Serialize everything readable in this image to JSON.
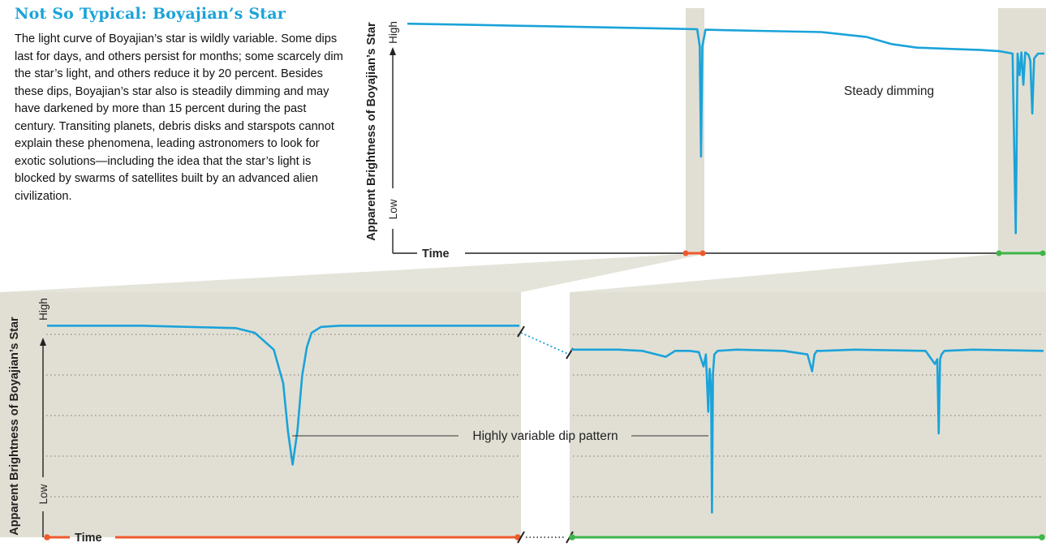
{
  "title": "Not So Typical: Boyajian’s Star",
  "body": "The light curve of Boyajian’s star is wildly variable. Some dips last for days, and others persist for months; some scarcely dim the star’s light, and others reduce it by 20 percent. Besides these dips, Boyajian’s star also is steadily dimming and may have darkened by more than 15 percent during the past century. Transiting planets, debris disks and starspots cannot explain these phenomena, leading astronomers to look for exotic solutions—including the idea that the star’s light is blocked by swarms of satellites built by an advanced alien civilization.",
  "colors": {
    "curve": "#1aa3d9",
    "title": "#1aa3d9",
    "band": "#e1dfd4",
    "orange": "#ee5a2c",
    "green": "#3db54a",
    "axis": "#222222"
  },
  "chart_data": [
    {
      "type": "line",
      "title": "",
      "xlabel": "Time",
      "ylabel": "Apparent Brightness of Boyajian’s Star",
      "ytick_high": "High",
      "ytick_low": "Low",
      "ylim": [
        0,
        1
      ],
      "xlim": [
        0,
        1
      ],
      "annotation": "Steady dimming",
      "highlight_ranges": [
        [
          0.459,
          0.474
        ],
        [
          0.925,
          1.0
        ]
      ],
      "series": [
        {
          "x": [
            0.0,
            0.1,
            0.2,
            0.3,
            0.4,
            0.455,
            0.459,
            0.461,
            0.463,
            0.468,
            0.55,
            0.65,
            0.72,
            0.76,
            0.8,
            0.85,
            0.9,
            0.93,
            0.95,
            0.955,
            0.958,
            0.961,
            0.964,
            0.967,
            0.97,
            0.975,
            0.978,
            0.981,
            0.984,
            0.987,
            0.99,
            1.0
          ],
          "y": [
            0.935,
            0.93,
            0.925,
            0.92,
            0.915,
            0.912,
            0.84,
            0.38,
            0.84,
            0.91,
            0.905,
            0.9,
            0.88,
            0.85,
            0.835,
            0.83,
            0.825,
            0.82,
            0.81,
            0.06,
            0.81,
            0.72,
            0.815,
            0.68,
            0.815,
            0.805,
            0.78,
            0.56,
            0.79,
            0.8,
            0.81,
            0.81
          ]
        }
      ]
    },
    {
      "type": "line",
      "title": "",
      "xlabel": "Time",
      "ylabel": "Apparent Brightness of Boyajian’s Star",
      "ytick_high": "High",
      "ytick_low": "Low",
      "ylim": [
        0,
        1
      ],
      "xlim": [
        0,
        1
      ],
      "annotation": "Highly variable dip pattern",
      "series": [
        {
          "x": [
            0.0,
            0.1,
            0.2,
            0.3,
            0.4,
            0.44,
            0.48,
            0.5,
            0.51,
            0.52,
            0.53,
            0.54,
            0.55,
            0.56,
            0.58,
            0.62,
            0.7,
            0.8,
            0.9,
            1.0
          ],
          "y": [
            0.86,
            0.86,
            0.86,
            0.855,
            0.85,
            0.83,
            0.76,
            0.62,
            0.42,
            0.28,
            0.42,
            0.65,
            0.77,
            0.83,
            0.855,
            0.86,
            0.86,
            0.86,
            0.86,
            0.86
          ]
        }
      ]
    },
    {
      "type": "line",
      "title": "",
      "xlabel": "",
      "ylabel": "",
      "ylim": [
        0,
        1
      ],
      "xlim": [
        0,
        1
      ],
      "series": [
        {
          "x": [
            0.0,
            0.1,
            0.15,
            0.2,
            0.22,
            0.25,
            0.27,
            0.28,
            0.285,
            0.29,
            0.293,
            0.296,
            0.298,
            0.3,
            0.303,
            0.31,
            0.35,
            0.45,
            0.5,
            0.51,
            0.515,
            0.52,
            0.53,
            0.6,
            0.75,
            0.77,
            0.775,
            0.778,
            0.781,
            0.784,
            0.79,
            0.85,
            1.0
          ],
          "y": [
            0.76,
            0.76,
            0.755,
            0.73,
            0.755,
            0.755,
            0.75,
            0.69,
            0.74,
            0.5,
            0.68,
            0.6,
            0.08,
            0.66,
            0.74,
            0.755,
            0.76,
            0.755,
            0.74,
            0.67,
            0.74,
            0.755,
            0.755,
            0.76,
            0.755,
            0.7,
            0.72,
            0.41,
            0.72,
            0.74,
            0.755,
            0.76,
            0.755
          ]
        }
      ]
    }
  ]
}
